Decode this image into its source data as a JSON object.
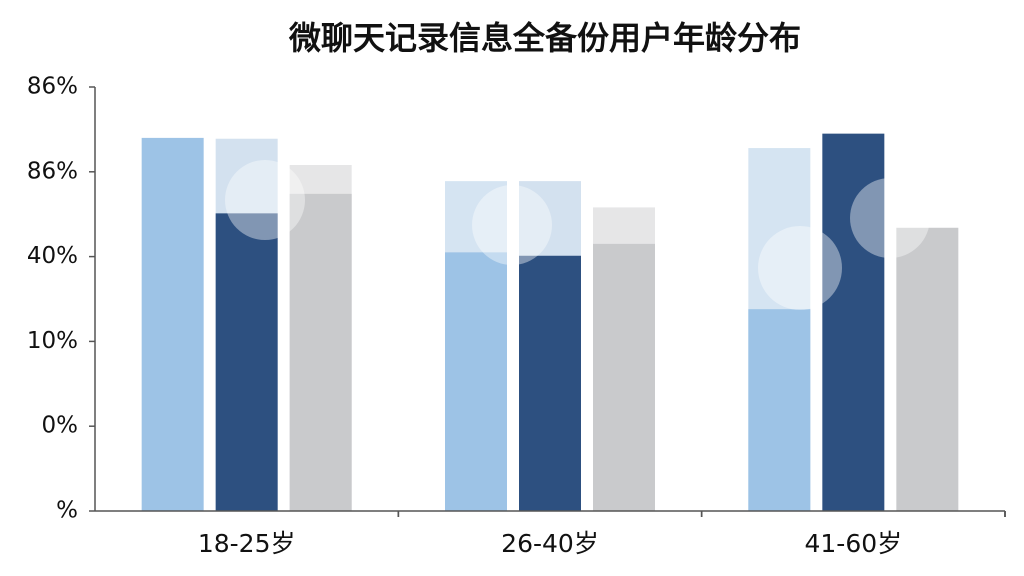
{
  "chart_data": {
    "type": "bar",
    "title": "微聊天记录信息全备份用户年龄分布",
    "categories": [
      "18-25岁",
      "26-40岁",
      "41-60岁"
    ],
    "series": [
      {
        "color": "#9dc3e6",
        "values": [
          4.4,
          3.05,
          2.38
        ]
      },
      {
        "color": "#2d5080",
        "values": [
          3.51,
          3.01,
          4.45
        ]
      },
      {
        "color": "#c9cacc",
        "values": [
          3.74,
          3.15,
          3.34
        ]
      }
    ],
    "overlay_series": [
      {
        "color": "#d5e4f2",
        "values": [
          null,
          3.89,
          4.28
        ]
      },
      {
        "color": "#d3e1ef",
        "values": [
          4.39,
          3.89,
          null
        ]
      },
      {
        "color": "#e6e6e7",
        "values": [
          4.08,
          3.58,
          null
        ]
      }
    ],
    "ylim": [
      0,
      5
    ],
    "yticks": [
      {
        "value": 0,
        "label": "%"
      },
      {
        "value": 1,
        "label": "0%"
      },
      {
        "value": 2,
        "label": "10%"
      },
      {
        "value": 3,
        "label": "40%"
      },
      {
        "value": 4,
        "label": "86%"
      },
      {
        "value": 5,
        "label": "86%"
      }
    ]
  }
}
